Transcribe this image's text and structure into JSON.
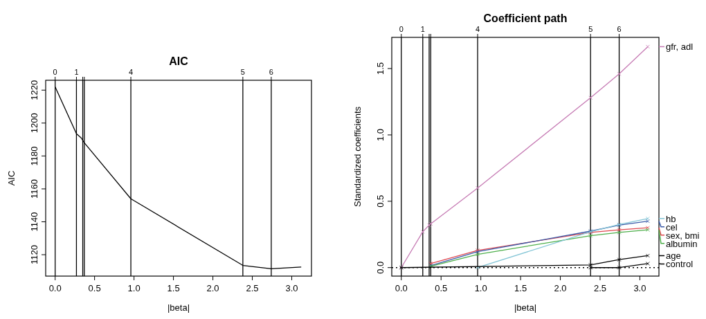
{
  "chart_data": [
    {
      "type": "line",
      "title": "AIC",
      "xlabel": "|beta|",
      "ylabel": "AIC",
      "xlim": [
        -0.12,
        3.25
      ],
      "ylim": [
        1107,
        1226
      ],
      "xticks": [
        {
          "value": 0,
          "label": "0.0"
        },
        {
          "value": 0.5,
          "label": "0.5"
        },
        {
          "value": 1,
          "label": "1.0"
        },
        {
          "value": 1.5,
          "label": "1.5"
        },
        {
          "value": 2,
          "label": "2.0"
        },
        {
          "value": 2.5,
          "label": "2.5"
        },
        {
          "value": 3,
          "label": "3.0"
        }
      ],
      "yticks": [
        1120,
        1140,
        1160,
        1180,
        1200,
        1220
      ],
      "annotations": [
        "0",
        "1",
        "4",
        "5",
        "6"
      ],
      "ref_lines": [
        {
          "axis": "x",
          "value": 0
        },
        {
          "axis": "x",
          "value": 0.27
        },
        {
          "axis": "x",
          "value": 0.35
        },
        {
          "axis": "x",
          "value": 0.37
        },
        {
          "axis": "x",
          "value": 0.96
        },
        {
          "axis": "x",
          "value": 2.38
        },
        {
          "axis": "x",
          "value": 2.74
        }
      ],
      "series": [
        {
          "color": "#000000",
          "x": [
            0,
            0.27,
            0.33,
            0.37,
            0.96,
            2.38,
            2.74,
            3.12
          ],
          "values": [
            1222,
            1193.5,
            1191,
            1188,
            1154,
            1113.5,
            1111.5,
            1112.5
          ]
        }
      ]
    },
    {
      "type": "line",
      "title": "Coefficient path",
      "xlabel": "|beta|",
      "ylabel": "Standardized coefficients",
      "xlim": [
        -0.12,
        3.24
      ],
      "ylim": [
        -0.064,
        1.735
      ],
      "marker": "cross",
      "legend": "right",
      "xticks": [
        {
          "value": 0,
          "label": "0.0"
        },
        {
          "value": 0.5,
          "label": "0.5"
        },
        {
          "value": 1,
          "label": "1.0"
        },
        {
          "value": 1.5,
          "label": "1.5"
        },
        {
          "value": 2,
          "label": "2.0"
        },
        {
          "value": 2.5,
          "label": "2.5"
        },
        {
          "value": 3,
          "label": "3.0"
        }
      ],
      "yticks": [
        {
          "value": 0,
          "label": "0.0"
        },
        {
          "value": 0.5,
          "label": "0.5"
        },
        {
          "value": 1,
          "label": "1.0"
        },
        {
          "value": 1.5,
          "label": "1.5"
        }
      ],
      "annotations": [
        "0",
        "1",
        "4",
        "5",
        "6"
      ],
      "ref_lines": [
        {
          "axis": "x",
          "value": 0
        },
        {
          "axis": "x",
          "value": 0.27
        },
        {
          "axis": "x",
          "value": 0.35
        },
        {
          "axis": "x",
          "value": 0.37
        },
        {
          "axis": "x",
          "value": 0.96
        },
        {
          "axis": "x",
          "value": 2.38
        },
        {
          "axis": "x",
          "value": 2.74
        },
        {
          "axis": "y",
          "value": 0,
          "line_style": "dotted"
        }
      ],
      "series": [
        {
          "name": "gfr, adl",
          "color": "#c67bb4",
          "x": [
            0,
            0.27,
            0.35,
            0.37,
            0.96,
            2.38,
            2.74,
            3.1
          ],
          "values": [
            0,
            0.27,
            0.32,
            0.33,
            0.6,
            1.28,
            1.46,
            1.665
          ]
        },
        {
          "name": "sex, bmi",
          "color": "#e0464e",
          "x": [
            0.37,
            0.96,
            2.38,
            2.74,
            3.1
          ],
          "values": [
            0.03,
            0.13,
            0.265,
            0.285,
            0.3
          ]
        },
        {
          "name": "cel",
          "color": "#3b5ba8",
          "x": [
            0.37,
            0.96,
            2.38,
            2.74,
            3.1
          ],
          "values": [
            0.015,
            0.12,
            0.275,
            0.32,
            0.35
          ]
        },
        {
          "name": "albumin",
          "color": "#4daf4a",
          "x": [
            0.37,
            0.96,
            2.38,
            2.74,
            3.1
          ],
          "values": [
            0.01,
            0.1,
            0.24,
            0.265,
            0.285
          ]
        },
        {
          "name": "hb",
          "color": "#83c5d6",
          "x": [
            0.96,
            2.38,
            2.74,
            3.1
          ],
          "values": [
            0,
            0.27,
            0.325,
            0.37
          ]
        },
        {
          "name": "age",
          "color": "#000000",
          "x": [
            0,
            2.38,
            2.74,
            3.1
          ],
          "values": [
            0,
            0.02,
            0.06,
            0.09
          ]
        },
        {
          "name": "control",
          "color": "#000000",
          "x": [
            2.38,
            2.74,
            3.1
          ],
          "values": [
            0,
            0,
            0.03
          ]
        }
      ]
    }
  ]
}
